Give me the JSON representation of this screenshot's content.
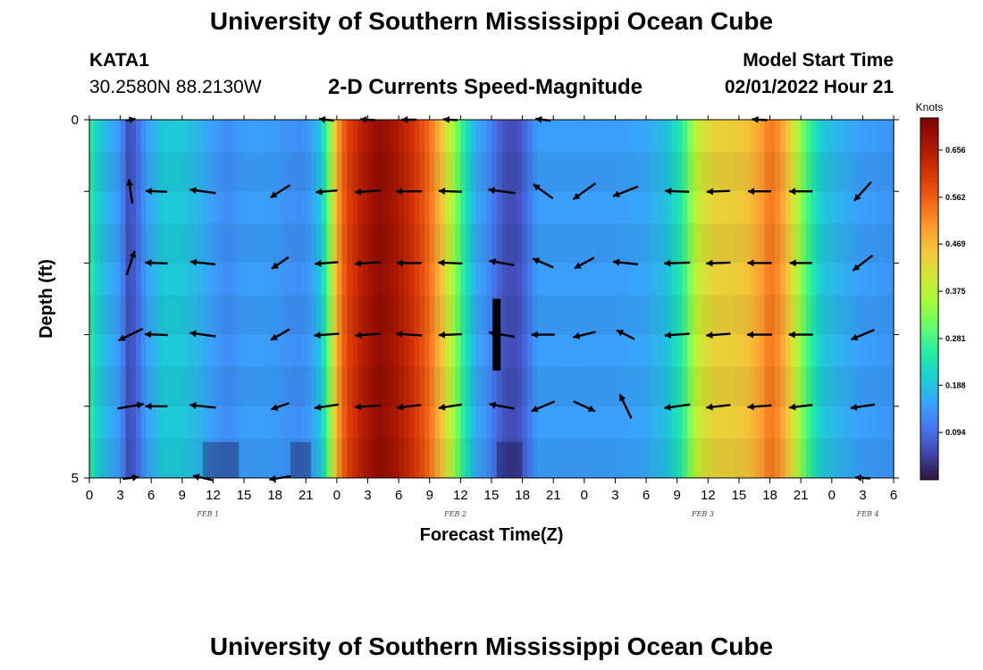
{
  "header": {
    "title": "University of Southern Mississippi Ocean Cube",
    "station_name": "KATA1",
    "station_coords": "30.2580N  88.2130W",
    "subtitle": "2-D Currents Speed-Magnitude",
    "model_start_label": "Model Start Time",
    "model_start_value": "02/01/2022 Hour 21"
  },
  "footer": {
    "title": "University of Southern Mississippi Ocean Cube"
  },
  "chart_data": {
    "type": "heatmap",
    "title": "2-D Currents Speed-Magnitude",
    "xlabel": "Forecast Time(Z)",
    "ylabel": "Depth (ft)",
    "y_range": [
      0,
      5
    ],
    "y_tick_labels": [
      "0",
      "5"
    ],
    "x_range_hours": [
      0,
      78
    ],
    "x_tick_labels": [
      "0",
      "3",
      "6",
      "9",
      "12",
      "15",
      "18",
      "21",
      "0",
      "3",
      "6",
      "9",
      "12",
      "15",
      "18",
      "21",
      "0",
      "3",
      "6",
      "9",
      "12",
      "15",
      "18",
      "21",
      "0",
      "3",
      "6"
    ],
    "day_labels": [
      {
        "label": "FEB 1",
        "hour": 11.5
      },
      {
        "label": "FEB 2",
        "hour": 35.5
      },
      {
        "label": "FEB 3",
        "hour": 59.5
      },
      {
        "label": "FEB 4",
        "hour": 75.5
      }
    ],
    "colorbar": {
      "unit": "Knots",
      "min": 0.0,
      "max": 0.72,
      "ticks": [
        0.094,
        0.188,
        0.281,
        0.375,
        0.469,
        0.562,
        0.656
      ]
    },
    "depth_rows": [
      0,
      1,
      2,
      3,
      4,
      5
    ],
    "speed_profile": {
      "hours": [
        0,
        1,
        2,
        3,
        3.8,
        4.5,
        5.5,
        7,
        9,
        10.5,
        12,
        13.5,
        15,
        17,
        19,
        20.5,
        21.5,
        22.5,
        23,
        23.5,
        24,
        25,
        26.5,
        28,
        29.5,
        31,
        32.5,
        33.5,
        34.5,
        35.5,
        36.5,
        37.5,
        38.5,
        39.5,
        40.5,
        41.5,
        42.5,
        43.5,
        44.5,
        45.5,
        46.5,
        48,
        51,
        54,
        56,
        57.5,
        58.5,
        59.5,
        61,
        62.5,
        64,
        65,
        66,
        67,
        68,
        69.5,
        71,
        73,
        75,
        78
      ],
      "speeds": [
        0.27,
        0.2,
        0.17,
        0.14,
        0.06,
        0.08,
        0.15,
        0.2,
        0.2,
        0.18,
        0.15,
        0.13,
        0.15,
        0.15,
        0.14,
        0.13,
        0.15,
        0.2,
        0.28,
        0.38,
        0.5,
        0.6,
        0.66,
        0.7,
        0.68,
        0.64,
        0.58,
        0.52,
        0.44,
        0.34,
        0.24,
        0.16,
        0.14,
        0.09,
        0.06,
        0.06,
        0.1,
        0.15,
        0.15,
        0.15,
        0.15,
        0.15,
        0.15,
        0.16,
        0.19,
        0.26,
        0.36,
        0.42,
        0.45,
        0.45,
        0.47,
        0.5,
        0.55,
        0.52,
        0.44,
        0.3,
        0.2,
        0.17,
        0.15,
        0.14
      ]
    },
    "vector_times_hours": [
      4,
      6.5,
      11,
      18.5,
      23,
      27,
      31,
      35,
      40,
      44,
      48,
      52,
      57,
      61,
      65,
      69,
      75
    ],
    "vectors": {
      "depth_0": [
        [
          11,
          -2
        ],
        [
          0,
          0
        ],
        [
          0,
          0
        ],
        [
          0,
          0
        ],
        [
          -17,
          -2
        ],
        [
          -17,
          -1
        ],
        [
          -17,
          0
        ],
        [
          -16,
          -1
        ],
        [
          0,
          0
        ],
        [
          -17,
          -2
        ],
        [
          0,
          0
        ],
        [
          0,
          0
        ],
        [
          0,
          0
        ],
        [
          0,
          0
        ],
        [
          -17,
          -1
        ],
        [
          0,
          0
        ],
        [
          0,
          0
        ]
      ],
      "depth_1": [
        [
          -4,
          -27
        ],
        [
          -24,
          -1
        ],
        [
          -29,
          -4
        ],
        [
          -22,
          14
        ],
        [
          -24,
          2
        ],
        [
          -29,
          2
        ],
        [
          -29,
          0
        ],
        [
          -26,
          -1
        ],
        [
          -30,
          -4
        ],
        [
          -22,
          -16
        ],
        [
          -25,
          18
        ],
        [
          -28,
          11
        ],
        [
          -27,
          -1
        ],
        [
          -26,
          1
        ],
        [
          -26,
          0
        ],
        [
          -26,
          0
        ],
        [
          -19,
          21
        ]
      ],
      "depth_2": [
        [
          9,
          -27
        ],
        [
          -25,
          -1
        ],
        [
          -28,
          -3
        ],
        [
          -19,
          13
        ],
        [
          -26,
          2
        ],
        [
          -29,
          2
        ],
        [
          -28,
          0
        ],
        [
          -27,
          -1
        ],
        [
          -28,
          -5
        ],
        [
          -23,
          -10
        ],
        [
          -22,
          12
        ],
        [
          -28,
          -3
        ],
        [
          -29,
          1
        ],
        [
          -27,
          1
        ],
        [
          -27,
          0
        ],
        [
          -25,
          0
        ],
        [
          -22,
          17
        ]
      ],
      "depth_3": [
        [
          -27,
          13
        ],
        [
          -26,
          -1
        ],
        [
          -29,
          -4
        ],
        [
          -21,
          12
        ],
        [
          -28,
          2
        ],
        [
          -28,
          2
        ],
        [
          -29,
          -2
        ],
        [
          -26,
          1
        ],
        [
          -29,
          -5
        ],
        [
          -26,
          0
        ],
        [
          -25,
          6
        ],
        [
          -20,
          -10
        ],
        [
          -28,
          2
        ],
        [
          -27,
          2
        ],
        [
          -28,
          0
        ],
        [
          -27,
          0
        ],
        [
          -26,
          11
        ]
      ],
      "depth_4": [
        [
          29,
          -5
        ],
        [
          -25,
          0
        ],
        [
          -29,
          -3
        ],
        [
          -20,
          7
        ],
        [
          -27,
          4
        ],
        [
          -29,
          2
        ],
        [
          -27,
          3
        ],
        [
          -26,
          4
        ],
        [
          -28,
          -5
        ],
        [
          -26,
          11
        ],
        [
          24,
          11
        ],
        [
          -13,
          -27
        ],
        [
          -29,
          4
        ],
        [
          -27,
          3
        ],
        [
          -27,
          2
        ],
        [
          -26,
          3
        ],
        [
          -27,
          4
        ]
      ],
      "depth_5": [
        [
          18,
          -2
        ],
        [
          0,
          0
        ],
        [
          -22,
          -5
        ],
        [
          -24,
          4
        ],
        [
          0,
          0
        ],
        [
          0,
          0
        ],
        [
          0,
          0
        ],
        [
          0,
          0
        ],
        [
          0,
          0
        ],
        [
          0,
          0
        ],
        [
          0,
          0
        ],
        [
          0,
          0
        ],
        [
          0,
          0
        ],
        [
          0,
          0
        ],
        [
          0,
          0
        ],
        [
          0,
          0
        ],
        [
          -17,
          -1
        ]
      ]
    },
    "blackout_bar": {
      "hour": 15.5,
      "day_offset_hours": 24,
      "depth_from": 2.5,
      "depth_to": 3.5
    }
  }
}
